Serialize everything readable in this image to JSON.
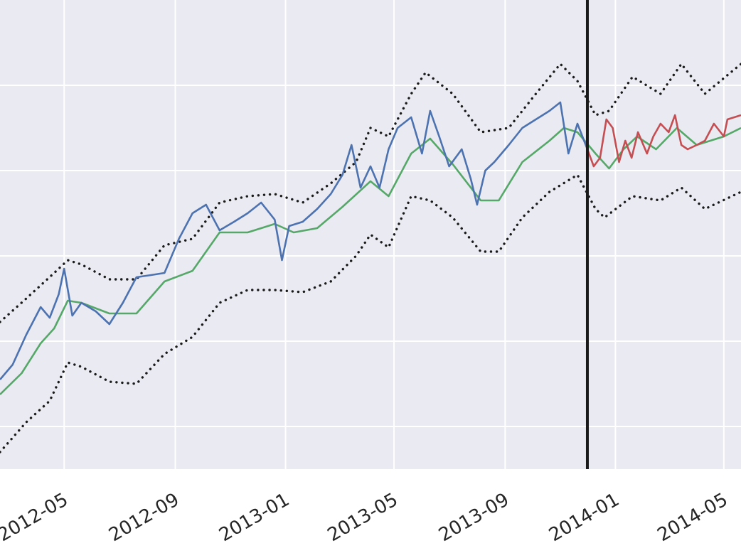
{
  "chart_data": {
    "type": "line",
    "grid": true,
    "x_axis": {
      "type": "date",
      "range": [
        "2012-02-20",
        "2014-05-20"
      ],
      "tick_labels": [
        "2012-05",
        "2012-09",
        "2013-01",
        "2013-05",
        "2013-09",
        "2014-01",
        "2014-05"
      ],
      "tick_dates": [
        "2012-05-01",
        "2012-09-01",
        "2013-01-01",
        "2013-05-01",
        "2013-09-01",
        "2014-01-01",
        "2014-05-01"
      ]
    },
    "y_axis": {
      "range": [
        0,
        11
      ],
      "gridlines": [
        1,
        3,
        5,
        7,
        9
      ]
    },
    "vertical_marker": {
      "date": "2013-12-01",
      "color": "#1a1a1a"
    },
    "colors": {
      "plot_background": "#eaeaf2",
      "grid": "#ffffff",
      "observed": "#4c72b0",
      "forecast": "#c44e52",
      "trend": "#55a868",
      "bounds": "#1a1a1a"
    },
    "series": [
      {
        "role": "observed",
        "style": "solid",
        "color": "#4c72b0",
        "points": [
          [
            "2012-02-20",
            2.1
          ],
          [
            "2012-03-05",
            2.45
          ],
          [
            "2012-03-20",
            3.15
          ],
          [
            "2012-04-05",
            3.8
          ],
          [
            "2012-04-15",
            3.55
          ],
          [
            "2012-04-25",
            4.1
          ],
          [
            "2012-05-01",
            4.7
          ],
          [
            "2012-05-10",
            3.6
          ],
          [
            "2012-05-20",
            3.9
          ],
          [
            "2012-06-05",
            3.7
          ],
          [
            "2012-06-20",
            3.4
          ],
          [
            "2012-07-05",
            3.9
          ],
          [
            "2012-07-20",
            4.5
          ],
          [
            "2012-08-05",
            4.55
          ],
          [
            "2012-08-20",
            4.6
          ],
          [
            "2012-09-05",
            5.4
          ],
          [
            "2012-09-20",
            6.0
          ],
          [
            "2012-10-05",
            6.2
          ],
          [
            "2012-10-20",
            5.6
          ],
          [
            "2012-11-05",
            5.8
          ],
          [
            "2012-11-20",
            6.0
          ],
          [
            "2012-12-05",
            6.25
          ],
          [
            "2012-12-20",
            5.85
          ],
          [
            "2012-12-28",
            4.9
          ],
          [
            "2013-01-05",
            5.7
          ],
          [
            "2013-01-20",
            5.8
          ],
          [
            "2013-02-05",
            6.1
          ],
          [
            "2013-02-20",
            6.45
          ],
          [
            "2013-03-05",
            6.9
          ],
          [
            "2013-03-15",
            7.6
          ],
          [
            "2013-03-25",
            6.6
          ],
          [
            "2013-04-05",
            7.1
          ],
          [
            "2013-04-15",
            6.6
          ],
          [
            "2013-04-25",
            7.5
          ],
          [
            "2013-05-05",
            8.0
          ],
          [
            "2013-05-20",
            8.25
          ],
          [
            "2013-06-01",
            7.4
          ],
          [
            "2013-06-10",
            8.4
          ],
          [
            "2013-06-20",
            7.8
          ],
          [
            "2013-07-01",
            7.1
          ],
          [
            "2013-07-15",
            7.5
          ],
          [
            "2013-07-25",
            6.8
          ],
          [
            "2013-08-01",
            6.2
          ],
          [
            "2013-08-10",
            7.0
          ],
          [
            "2013-08-20",
            7.2
          ],
          [
            "2013-09-05",
            7.6
          ],
          [
            "2013-09-20",
            8.0
          ],
          [
            "2013-10-05",
            8.2
          ],
          [
            "2013-10-20",
            8.4
          ],
          [
            "2013-11-01",
            8.6
          ],
          [
            "2013-11-10",
            7.4
          ],
          [
            "2013-11-20",
            8.1
          ],
          [
            "2013-12-01",
            7.5
          ]
        ]
      },
      {
        "role": "forecast",
        "style": "solid",
        "color": "#c44e52",
        "points": [
          [
            "2013-12-01",
            7.5
          ],
          [
            "2013-12-08",
            7.1
          ],
          [
            "2013-12-15",
            7.3
          ],
          [
            "2013-12-22",
            8.2
          ],
          [
            "2013-12-29",
            8.0
          ],
          [
            "2014-01-05",
            7.2
          ],
          [
            "2014-01-12",
            7.7
          ],
          [
            "2014-01-19",
            7.3
          ],
          [
            "2014-01-26",
            7.9
          ],
          [
            "2014-02-05",
            7.4
          ],
          [
            "2014-02-12",
            7.8
          ],
          [
            "2014-02-20",
            8.1
          ],
          [
            "2014-03-01",
            7.9
          ],
          [
            "2014-03-08",
            8.3
          ],
          [
            "2014-03-15",
            7.6
          ],
          [
            "2014-03-22",
            7.5
          ],
          [
            "2014-04-01",
            7.6
          ],
          [
            "2014-04-10",
            7.7
          ],
          [
            "2014-04-20",
            8.1
          ],
          [
            "2014-05-01",
            7.8
          ],
          [
            "2014-05-05",
            8.2
          ],
          [
            "2014-05-20",
            8.3
          ]
        ]
      },
      {
        "role": "trend",
        "style": "solid",
        "color": "#55a868",
        "points": [
          [
            "2012-02-20",
            1.75
          ],
          [
            "2012-03-15",
            2.25
          ],
          [
            "2012-04-05",
            2.95
          ],
          [
            "2012-04-20",
            3.3
          ],
          [
            "2012-05-05",
            3.95
          ],
          [
            "2012-05-20",
            3.9
          ],
          [
            "2012-06-20",
            3.65
          ],
          [
            "2012-07-20",
            3.65
          ],
          [
            "2012-08-20",
            4.4
          ],
          [
            "2012-09-20",
            4.65
          ],
          [
            "2012-10-20",
            5.55
          ],
          [
            "2012-11-20",
            5.55
          ],
          [
            "2012-12-20",
            5.75
          ],
          [
            "2013-01-10",
            5.55
          ],
          [
            "2013-02-05",
            5.65
          ],
          [
            "2013-03-05",
            6.15
          ],
          [
            "2013-04-05",
            6.75
          ],
          [
            "2013-04-25",
            6.4
          ],
          [
            "2013-05-20",
            7.4
          ],
          [
            "2013-06-10",
            7.75
          ],
          [
            "2013-07-05",
            7.15
          ],
          [
            "2013-08-05",
            6.3
          ],
          [
            "2013-08-25",
            6.3
          ],
          [
            "2013-09-20",
            7.2
          ],
          [
            "2013-10-20",
            7.7
          ],
          [
            "2013-11-05",
            8.0
          ],
          [
            "2013-11-20",
            7.9
          ],
          [
            "2013-12-10",
            7.4
          ],
          [
            "2013-12-25",
            7.05
          ],
          [
            "2014-01-10",
            7.5
          ],
          [
            "2014-01-25",
            7.8
          ],
          [
            "2014-02-15",
            7.5
          ],
          [
            "2014-03-10",
            8.0
          ],
          [
            "2014-04-01",
            7.6
          ],
          [
            "2014-05-01",
            7.8
          ],
          [
            "2014-05-20",
            8.0
          ]
        ]
      },
      {
        "role": "upper_bound",
        "style": "dotted",
        "color": "#1a1a1a",
        "points": [
          [
            "2012-02-20",
            3.45
          ],
          [
            "2012-03-20",
            4.0
          ],
          [
            "2012-04-20",
            4.6
          ],
          [
            "2012-05-05",
            4.9
          ],
          [
            "2012-05-20",
            4.8
          ],
          [
            "2012-06-20",
            4.45
          ],
          [
            "2012-07-20",
            4.45
          ],
          [
            "2012-08-20",
            5.25
          ],
          [
            "2012-09-20",
            5.4
          ],
          [
            "2012-10-20",
            6.25
          ],
          [
            "2012-11-20",
            6.4
          ],
          [
            "2012-12-20",
            6.45
          ],
          [
            "2013-01-20",
            6.25
          ],
          [
            "2013-02-20",
            6.7
          ],
          [
            "2013-03-20",
            7.2
          ],
          [
            "2013-04-05",
            8.0
          ],
          [
            "2013-04-25",
            7.8
          ],
          [
            "2013-05-20",
            8.8
          ],
          [
            "2013-06-05",
            9.3
          ],
          [
            "2013-07-05",
            8.8
          ],
          [
            "2013-08-05",
            7.9
          ],
          [
            "2013-09-05",
            8.0
          ],
          [
            "2013-10-05",
            8.8
          ],
          [
            "2013-11-01",
            9.5
          ],
          [
            "2013-11-20",
            9.1
          ],
          [
            "2013-12-10",
            8.3
          ],
          [
            "2013-12-25",
            8.4
          ],
          [
            "2014-01-20",
            9.2
          ],
          [
            "2014-02-20",
            8.8
          ],
          [
            "2014-03-15",
            9.5
          ],
          [
            "2014-04-10",
            8.8
          ],
          [
            "2014-05-20",
            9.5
          ]
        ]
      },
      {
        "role": "lower_bound",
        "style": "dotted",
        "color": "#1a1a1a",
        "points": [
          [
            "2012-02-20",
            0.4
          ],
          [
            "2012-03-20",
            1.1
          ],
          [
            "2012-04-15",
            1.6
          ],
          [
            "2012-05-05",
            2.5
          ],
          [
            "2012-05-20",
            2.4
          ],
          [
            "2012-06-20",
            2.05
          ],
          [
            "2012-07-20",
            2.0
          ],
          [
            "2012-08-20",
            2.7
          ],
          [
            "2012-09-20",
            3.1
          ],
          [
            "2012-10-20",
            3.9
          ],
          [
            "2012-11-20",
            4.2
          ],
          [
            "2012-12-20",
            4.2
          ],
          [
            "2013-01-20",
            4.15
          ],
          [
            "2013-02-20",
            4.4
          ],
          [
            "2013-03-20",
            5.0
          ],
          [
            "2013-04-05",
            5.5
          ],
          [
            "2013-04-25",
            5.2
          ],
          [
            "2013-05-20",
            6.4
          ],
          [
            "2013-06-10",
            6.3
          ],
          [
            "2013-07-05",
            5.9
          ],
          [
            "2013-08-05",
            5.1
          ],
          [
            "2013-08-25",
            5.1
          ],
          [
            "2013-09-20",
            5.9
          ],
          [
            "2013-10-20",
            6.5
          ],
          [
            "2013-11-20",
            6.9
          ],
          [
            "2013-12-10",
            6.1
          ],
          [
            "2013-12-20",
            5.9
          ],
          [
            "2014-01-20",
            6.4
          ],
          [
            "2014-02-20",
            6.3
          ],
          [
            "2014-03-15",
            6.6
          ],
          [
            "2014-04-10",
            6.1
          ],
          [
            "2014-05-20",
            6.5
          ]
        ]
      }
    ]
  }
}
